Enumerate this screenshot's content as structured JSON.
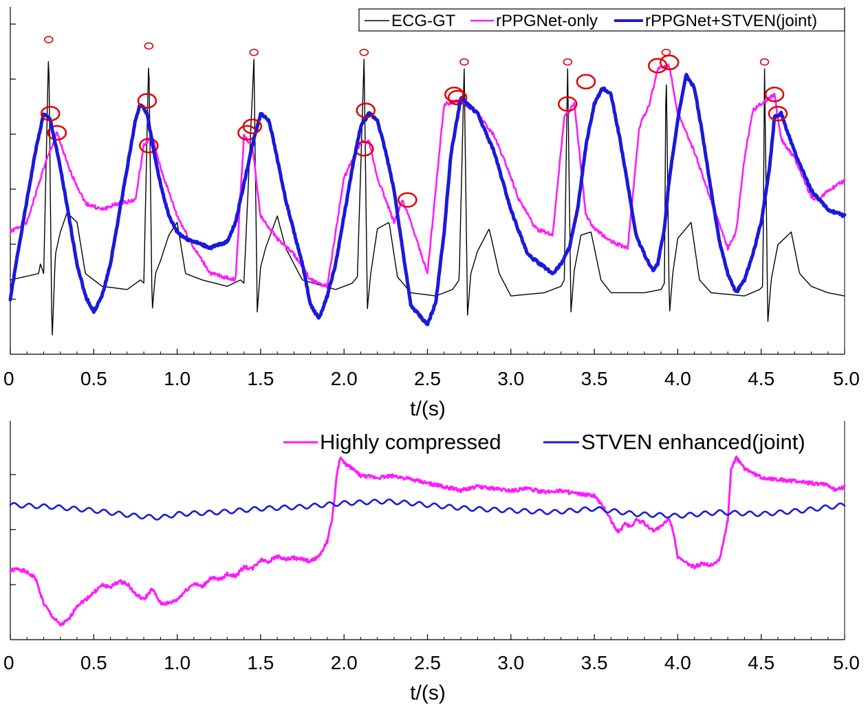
{
  "colors": {
    "ecg": "#000000",
    "pink": "#ff1aff",
    "blue": "#1a1ad9",
    "peak": "#e00000",
    "axis": "#000000"
  },
  "chart_data": [
    {
      "type": "line",
      "title": "",
      "xlabel": "t/(s)",
      "ylabel": "",
      "xlim": [
        0,
        5
      ],
      "ylim": [
        0,
        1
      ],
      "xticks": [
        0,
        0.5,
        1,
        1.5,
        2,
        2.5,
        3,
        3.5,
        4,
        4.5,
        5
      ],
      "xtick_labels": [
        "0",
        "0.5",
        "1.0",
        "1.5",
        "2.0",
        "2.5",
        "3.0",
        "3.5",
        "4.0",
        "4.5",
        "5.0"
      ],
      "legend": [
        "ECG-GT",
        "rPPGNet-only",
        "rPPGNet+STVEN(joint)"
      ],
      "legend_position": "top-right",
      "ecg_r_peaks": [
        0.23,
        0.83,
        1.46,
        2.12,
        2.72,
        3.34,
        3.93,
        4.52
      ],
      "series": [
        {
          "name": "ECG-GT",
          "x": [
            0.0,
            0.17,
            0.18,
            0.2,
            0.23,
            0.25,
            0.27,
            0.3,
            0.34,
            0.4,
            0.45,
            0.55,
            0.7,
            0.78,
            0.8,
            0.83,
            0.85,
            0.87,
            0.9,
            0.95,
            1.0,
            1.05,
            1.15,
            1.3,
            1.38,
            1.4,
            1.46,
            1.48,
            1.5,
            1.53,
            1.6,
            1.65,
            1.75,
            1.95,
            2.05,
            2.08,
            2.12,
            2.14,
            2.16,
            2.2,
            2.27,
            2.32,
            2.4,
            2.55,
            2.65,
            2.69,
            2.72,
            2.74,
            2.76,
            2.8,
            2.87,
            2.93,
            3.0,
            3.2,
            3.3,
            3.32,
            3.34,
            3.36,
            3.38,
            3.42,
            3.48,
            3.54,
            3.6,
            3.8,
            3.9,
            3.92,
            3.93,
            3.95,
            3.97,
            4.0,
            4.08,
            4.13,
            4.2,
            4.4,
            4.49,
            4.51,
            4.52,
            4.54,
            4.56,
            4.6,
            4.68,
            4.73,
            4.8,
            4.9,
            5.0
          ],
          "y": [
            0.2,
            0.22,
            0.25,
            0.22,
            0.93,
            0.0,
            0.28,
            0.35,
            0.41,
            0.38,
            0.22,
            0.18,
            0.17,
            0.2,
            0.19,
            0.91,
            0.1,
            0.22,
            0.26,
            0.34,
            0.38,
            0.22,
            0.2,
            0.18,
            0.2,
            0.19,
            0.89,
            0.1,
            0.24,
            0.3,
            0.4,
            0.3,
            0.2,
            0.17,
            0.19,
            0.21,
            0.89,
            0.11,
            0.22,
            0.36,
            0.38,
            0.21,
            0.16,
            0.15,
            0.17,
            0.2,
            0.86,
            0.09,
            0.22,
            0.29,
            0.36,
            0.22,
            0.15,
            0.16,
            0.18,
            0.2,
            0.86,
            0.1,
            0.23,
            0.34,
            0.35,
            0.2,
            0.16,
            0.16,
            0.17,
            0.19,
            0.89,
            0.09,
            0.22,
            0.33,
            0.38,
            0.2,
            0.16,
            0.15,
            0.17,
            0.18,
            0.86,
            0.07,
            0.2,
            0.31,
            0.35,
            0.22,
            0.18,
            0.16,
            0.15
          ]
        },
        {
          "name": "rPPGNet-only",
          "x": [
            0.0,
            0.1,
            0.2,
            0.28,
            0.35,
            0.45,
            0.55,
            0.65,
            0.75,
            0.8,
            0.85,
            0.9,
            1.0,
            1.1,
            1.2,
            1.35,
            1.4,
            1.45,
            1.5,
            1.6,
            1.7,
            1.8,
            1.9,
            2.0,
            2.1,
            2.15,
            2.2,
            2.3,
            2.35,
            2.4,
            2.5,
            2.6,
            2.7,
            2.8,
            2.9,
            2.98,
            3.05,
            3.15,
            3.25,
            3.32,
            3.38,
            3.45,
            3.5,
            3.6,
            3.7,
            3.77,
            3.83,
            3.88,
            3.95,
            4.0,
            4.05,
            4.1,
            4.2,
            4.3,
            4.35,
            4.4,
            4.45,
            4.55,
            4.58,
            4.62,
            4.7,
            4.8,
            4.85,
            4.9,
            5.0
          ],
          "y": [
            0.35,
            0.38,
            0.55,
            0.66,
            0.55,
            0.44,
            0.42,
            0.44,
            0.45,
            0.62,
            0.65,
            0.55,
            0.4,
            0.3,
            0.22,
            0.2,
            0.65,
            0.62,
            0.4,
            0.33,
            0.28,
            0.2,
            0.18,
            0.52,
            0.63,
            0.63,
            0.52,
            0.38,
            0.45,
            0.38,
            0.22,
            0.75,
            0.76,
            0.72,
            0.65,
            0.55,
            0.45,
            0.36,
            0.34,
            0.71,
            0.75,
            0.4,
            0.36,
            0.32,
            0.3,
            0.68,
            0.75,
            0.86,
            0.87,
            0.72,
            0.66,
            0.6,
            0.45,
            0.3,
            0.35,
            0.58,
            0.73,
            0.77,
            0.78,
            0.64,
            0.58,
            0.46,
            0.45,
            0.48,
            0.51
          ],
          "peaks": [
            [
              0.28,
              0.66
            ],
            [
              0.83,
              0.62
            ],
            [
              1.42,
              0.66
            ],
            [
              2.12,
              0.61
            ],
            [
              2.38,
              0.45
            ],
            [
              2.68,
              0.77
            ],
            [
              3.34,
              0.75
            ],
            [
              3.88,
              0.87
            ],
            [
              4.58,
              0.78
            ]
          ]
        },
        {
          "name": "rPPGNet+STVEN(joint)",
          "x": [
            0.0,
            0.05,
            0.1,
            0.15,
            0.2,
            0.24,
            0.3,
            0.35,
            0.4,
            0.45,
            0.5,
            0.55,
            0.6,
            0.65,
            0.7,
            0.75,
            0.78,
            0.82,
            0.86,
            0.9,
            0.95,
            1.0,
            1.05,
            1.1,
            1.2,
            1.3,
            1.35,
            1.4,
            1.45,
            1.5,
            1.55,
            1.6,
            1.65,
            1.7,
            1.75,
            1.8,
            1.85,
            1.9,
            1.95,
            2.0,
            2.05,
            2.1,
            2.15,
            2.2,
            2.25,
            2.3,
            2.35,
            2.4,
            2.5,
            2.55,
            2.6,
            2.64,
            2.7,
            2.8,
            2.9,
            3.0,
            3.1,
            3.2,
            3.25,
            3.3,
            3.35,
            3.4,
            3.45,
            3.5,
            3.55,
            3.6,
            3.65,
            3.7,
            3.75,
            3.8,
            3.85,
            3.88,
            3.92,
            3.95,
            4.0,
            4.05,
            4.1,
            4.15,
            4.2,
            4.25,
            4.3,
            4.35,
            4.4,
            4.45,
            4.5,
            4.55,
            4.58,
            4.62,
            4.7,
            4.8,
            4.9,
            5.0
          ],
          "y": [
            0.14,
            0.3,
            0.45,
            0.6,
            0.72,
            0.7,
            0.55,
            0.4,
            0.25,
            0.15,
            0.1,
            0.15,
            0.25,
            0.4,
            0.55,
            0.7,
            0.75,
            0.72,
            0.6,
            0.5,
            0.4,
            0.35,
            0.33,
            0.32,
            0.3,
            0.32,
            0.38,
            0.5,
            0.62,
            0.72,
            0.7,
            0.58,
            0.45,
            0.35,
            0.25,
            0.12,
            0.08,
            0.15,
            0.25,
            0.4,
            0.55,
            0.68,
            0.72,
            0.7,
            0.6,
            0.48,
            0.3,
            0.12,
            0.06,
            0.13,
            0.35,
            0.59,
            0.77,
            0.72,
            0.6,
            0.42,
            0.28,
            0.24,
            0.22,
            0.25,
            0.3,
            0.42,
            0.62,
            0.75,
            0.8,
            0.78,
            0.65,
            0.5,
            0.34,
            0.28,
            0.23,
            0.25,
            0.36,
            0.52,
            0.7,
            0.84,
            0.8,
            0.65,
            0.48,
            0.32,
            0.22,
            0.16,
            0.2,
            0.28,
            0.38,
            0.55,
            0.71,
            0.72,
            0.6,
            0.48,
            0.42,
            0.4
          ],
          "peaks": [
            [
              0.24,
              0.72
            ],
            [
              0.82,
              0.76
            ],
            [
              1.45,
              0.68
            ],
            [
              2.13,
              0.73
            ],
            [
              2.66,
              0.78
            ],
            [
              3.45,
              0.82
            ],
            [
              3.95,
              0.88
            ],
            [
              4.6,
              0.72
            ]
          ]
        }
      ]
    },
    {
      "type": "line",
      "title": "",
      "xlabel": "t/(s)",
      "ylabel": "",
      "xlim": [
        0,
        5
      ],
      "ylim": [
        0,
        1
      ],
      "xticks": [
        0,
        0.5,
        1,
        1.5,
        2,
        2.5,
        3,
        3.5,
        4,
        4.5,
        5
      ],
      "xtick_labels": [
        "0",
        "0.5",
        "1.0",
        "1.5",
        "2.0",
        "2.5",
        "3.0",
        "3.5",
        "4.0",
        "4.5",
        "5.0"
      ],
      "legend": [
        "Highly compressed",
        "STVEN enhanced(joint)"
      ],
      "legend_position": "top-right",
      "series": [
        {
          "name": "Highly compressed",
          "x": [
            0.0,
            0.05,
            0.1,
            0.15,
            0.2,
            0.25,
            0.3,
            0.35,
            0.4,
            0.45,
            0.5,
            0.55,
            0.6,
            0.65,
            0.7,
            0.75,
            0.8,
            0.85,
            0.9,
            0.95,
            1.0,
            1.05,
            1.1,
            1.15,
            1.2,
            1.25,
            1.3,
            1.35,
            1.4,
            1.45,
            1.5,
            1.55,
            1.6,
            1.65,
            1.7,
            1.75,
            1.8,
            1.85,
            1.9,
            1.93,
            1.96,
            1.98,
            2.0,
            2.05,
            2.1,
            2.2,
            2.3,
            2.4,
            2.5,
            2.6,
            2.7,
            2.8,
            2.9,
            3.0,
            3.1,
            3.2,
            3.3,
            3.4,
            3.5,
            3.56,
            3.58,
            3.62,
            3.65,
            3.68,
            3.72,
            3.75,
            3.8,
            3.85,
            3.9,
            3.95,
            3.98,
            4.0,
            4.05,
            4.1,
            4.15,
            4.2,
            4.25,
            4.27,
            4.3,
            4.32,
            4.35,
            4.4,
            4.5,
            4.6,
            4.7,
            4.8,
            4.9,
            4.95,
            5.0
          ],
          "y": [
            0.36,
            0.37,
            0.35,
            0.32,
            0.18,
            0.11,
            0.06,
            0.09,
            0.17,
            0.2,
            0.24,
            0.28,
            0.27,
            0.3,
            0.29,
            0.23,
            0.2,
            0.26,
            0.18,
            0.18,
            0.2,
            0.25,
            0.29,
            0.27,
            0.32,
            0.31,
            0.34,
            0.33,
            0.38,
            0.37,
            0.42,
            0.41,
            0.44,
            0.42,
            0.43,
            0.42,
            0.41,
            0.44,
            0.52,
            0.65,
            0.91,
            0.98,
            0.95,
            0.92,
            0.88,
            0.87,
            0.88,
            0.86,
            0.84,
            0.82,
            0.8,
            0.82,
            0.81,
            0.8,
            0.81,
            0.79,
            0.8,
            0.78,
            0.77,
            0.7,
            0.67,
            0.6,
            0.57,
            0.62,
            0.6,
            0.64,
            0.62,
            0.58,
            0.6,
            0.65,
            0.55,
            0.43,
            0.4,
            0.38,
            0.4,
            0.39,
            0.42,
            0.5,
            0.64,
            0.92,
            0.98,
            0.92,
            0.87,
            0.86,
            0.85,
            0.84,
            0.83,
            0.8,
            0.82
          ],
          "peaks": []
        },
        {
          "name": "STVEN enhanced(joint)",
          "x": [
            0.0,
            0.25,
            0.5,
            0.75,
            0.9,
            1.0,
            1.25,
            1.5,
            1.75,
            2.0,
            2.25,
            2.4,
            2.5,
            2.75,
            3.0,
            3.25,
            3.5,
            3.75,
            4.0,
            4.25,
            4.5,
            4.75,
            5.0
          ],
          "y": [
            0.72,
            0.71,
            0.69,
            0.66,
            0.65,
            0.67,
            0.68,
            0.7,
            0.71,
            0.73,
            0.74,
            0.73,
            0.72,
            0.7,
            0.69,
            0.68,
            0.7,
            0.67,
            0.66,
            0.68,
            0.67,
            0.69,
            0.72
          ],
          "wiggle_amplitude": 0.012,
          "wiggle_period_s": 0.09,
          "peaks": []
        }
      ]
    }
  ]
}
